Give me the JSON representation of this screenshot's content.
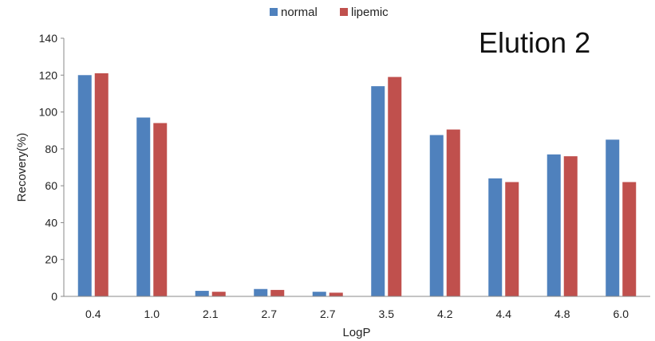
{
  "chart_data": {
    "type": "bar",
    "annotation": "Elution 2",
    "xlabel": "LogP",
    "ylabel": "Recovery(%)",
    "ylim": [
      0,
      140
    ],
    "yticks": [
      "0",
      "20",
      "40",
      "60",
      "80",
      "100",
      "120",
      "140"
    ],
    "categories": [
      "0.4",
      "1.0",
      "2.1",
      "2.7",
      "2.7",
      "3.5",
      "4.2",
      "4.4",
      "4.8",
      "6.0"
    ],
    "grid": false,
    "legend_position": "top-center",
    "series": [
      {
        "name": "normal",
        "color": "#4f81bd",
        "values": [
          120,
          97,
          3,
          4,
          2.5,
          114,
          87.5,
          64,
          77,
          85
        ]
      },
      {
        "name": "lipemic",
        "color": "#c0504d",
        "values": [
          121,
          94,
          2.5,
          3.5,
          2,
          119,
          90.5,
          62,
          76,
          62
        ]
      }
    ]
  }
}
